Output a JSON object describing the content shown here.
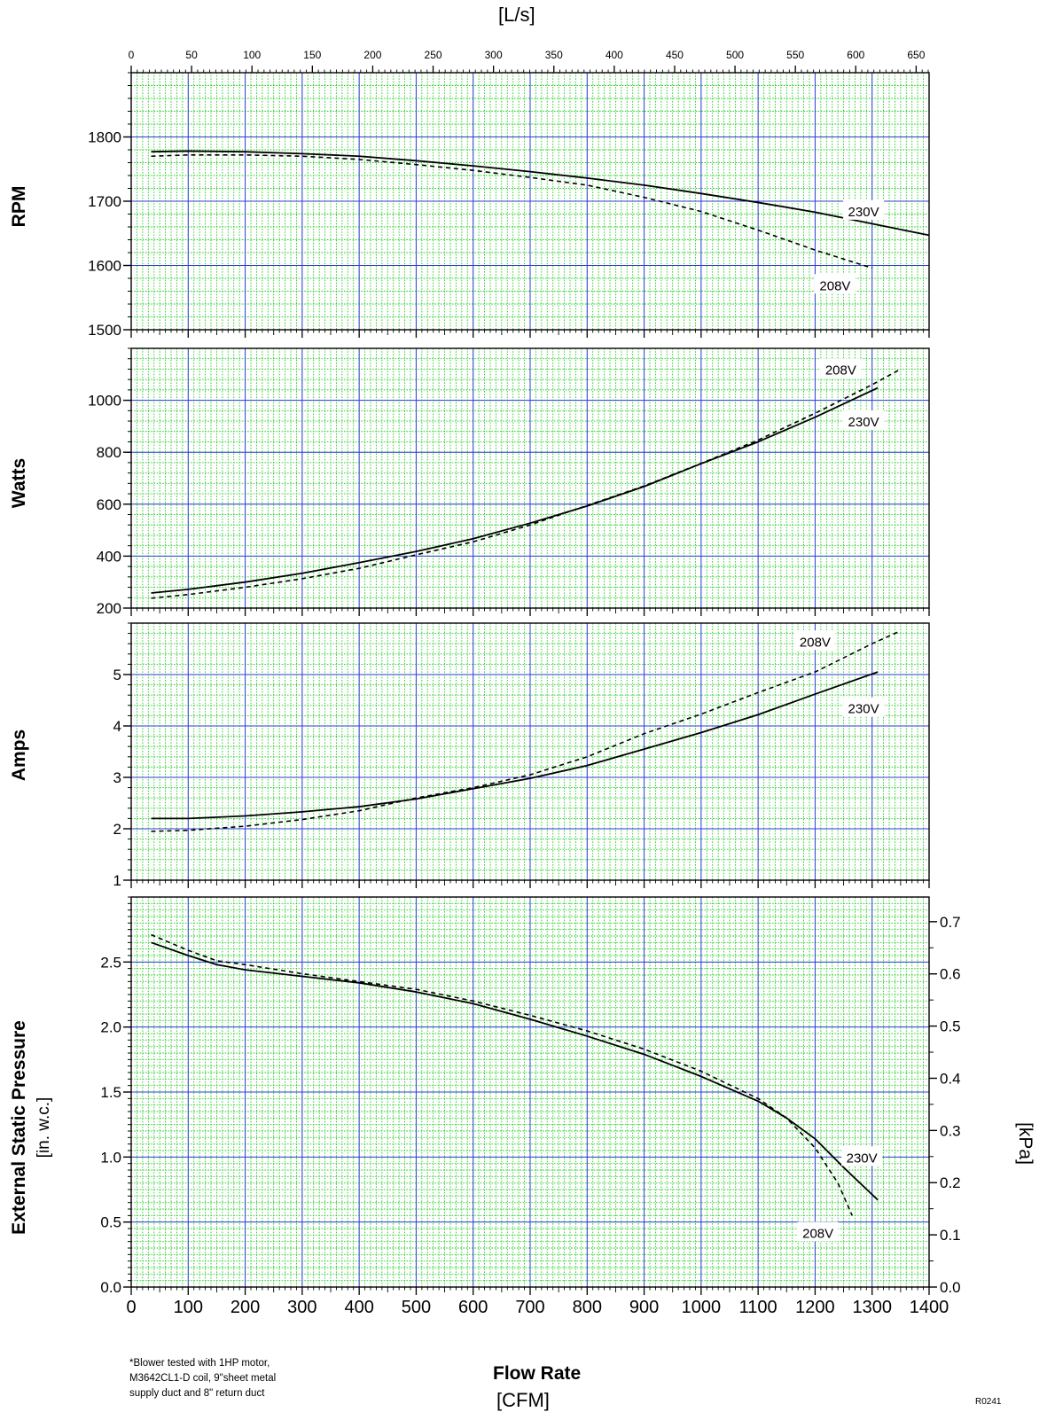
{
  "top_axis_unit": "[L/s]",
  "flow_axis_title": "Flow Rate",
  "flow_axis_unit": "[CFM]",
  "footnote_lines": [
    "*Blower tested with 1HP motor,",
    "M3642CL1-D coil, 9\"sheet metal",
    "supply duct and 8\" return duct"
  ],
  "reference_code": "R0241",
  "colors": {
    "major_grid": "#2f3fd6",
    "minor_grid": "#22cc22",
    "curve": "#000000"
  },
  "chart_data": [
    {
      "type": "line",
      "ylabel": "RPM",
      "ylim": [
        1500,
        1900
      ],
      "yticks": [
        1500,
        1600,
        1700,
        1800
      ],
      "xlim": [
        0,
        1400
      ],
      "xticks_top": [
        0,
        50,
        100,
        150,
        200,
        250,
        300,
        350,
        400,
        450,
        500,
        550,
        600,
        650
      ],
      "xlabel_top": "[L/s]",
      "series": [
        {
          "name": "230V",
          "style": "solid",
          "x": [
            35,
            100,
            200,
            300,
            400,
            500,
            600,
            700,
            800,
            900,
            1000,
            1100,
            1200,
            1300,
            1400
          ],
          "y": [
            1777,
            1778,
            1777,
            1774,
            1770,
            1763,
            1755,
            1746,
            1736,
            1725,
            1712,
            1698,
            1683,
            1665,
            1647
          ]
        },
        {
          "name": "208V",
          "style": "dashed",
          "x": [
            35,
            100,
            200,
            300,
            400,
            500,
            600,
            700,
            800,
            900,
            1000,
            1100,
            1200,
            1300
          ],
          "y": [
            1770,
            1772,
            1772,
            1770,
            1765,
            1757,
            1748,
            1737,
            1725,
            1706,
            1684,
            1655,
            1624,
            1596
          ]
        }
      ],
      "annotations": [
        {
          "text": "230V",
          "x": 1285,
          "y": 1685
        },
        {
          "text": "208V",
          "x": 1235,
          "y": 1570
        }
      ]
    },
    {
      "type": "line",
      "ylabel": "Watts",
      "ylim": [
        200,
        1200
      ],
      "yticks": [
        200,
        400,
        600,
        800,
        1000
      ],
      "xlim": [
        0,
        1400
      ],
      "series": [
        {
          "name": "230V",
          "style": "solid",
          "x": [
            35,
            100,
            200,
            300,
            400,
            500,
            600,
            700,
            800,
            900,
            1000,
            1100,
            1200,
            1310
          ],
          "y": [
            258,
            272,
            300,
            334,
            375,
            418,
            467,
            527,
            593,
            668,
            756,
            840,
            935,
            1048
          ]
        },
        {
          "name": "208V",
          "style": "dashed",
          "x": [
            35,
            100,
            200,
            300,
            400,
            500,
            600,
            700,
            800,
            900,
            1000,
            1100,
            1200,
            1300,
            1350
          ],
          "y": [
            238,
            252,
            280,
            313,
            353,
            405,
            455,
            520,
            595,
            670,
            757,
            847,
            950,
            1060,
            1120
          ]
        }
      ],
      "annotations": [
        {
          "text": "208V",
          "x": 1245,
          "y": 1120
        },
        {
          "text": "230V",
          "x": 1285,
          "y": 920
        }
      ]
    },
    {
      "type": "line",
      "ylabel": "Amps",
      "ylim": [
        1,
        6
      ],
      "yticks": [
        1,
        2,
        3,
        4,
        5
      ],
      "xlim": [
        0,
        1400
      ],
      "series": [
        {
          "name": "230V",
          "style": "solid",
          "x": [
            35,
            100,
            200,
            300,
            400,
            500,
            600,
            700,
            800,
            900,
            1000,
            1100,
            1200,
            1310
          ],
          "y": [
            2.2,
            2.2,
            2.25,
            2.33,
            2.43,
            2.58,
            2.78,
            2.98,
            3.23,
            3.55,
            3.87,
            4.22,
            4.62,
            5.05
          ]
        },
        {
          "name": "208V",
          "style": "dashed",
          "x": [
            35,
            100,
            200,
            300,
            400,
            500,
            600,
            700,
            800,
            900,
            1000,
            1100,
            1200,
            1300,
            1350
          ],
          "y": [
            1.95,
            1.97,
            2.05,
            2.18,
            2.35,
            2.6,
            2.8,
            3.05,
            3.4,
            3.85,
            4.23,
            4.65,
            5.05,
            5.6,
            5.85
          ]
        }
      ],
      "annotations": [
        {
          "text": "208V",
          "x": 1200,
          "y": 5.65
        },
        {
          "text": "230V",
          "x": 1285,
          "y": 4.35
        }
      ]
    },
    {
      "type": "line",
      "ylabel": "External Static Pressure",
      "ylabel_unit": "[in. w.c.]",
      "y2label": "[kPa]",
      "ylim": [
        0,
        3
      ],
      "yticks": [
        0.0,
        0.5,
        1.0,
        1.5,
        2.0,
        2.5
      ],
      "yticks_labels": [
        "0.0",
        "0.5",
        "1.0",
        "1.5",
        "2.0",
        "2.5"
      ],
      "y2ticks": [
        0.0,
        0.1,
        0.2,
        0.3,
        0.4,
        0.5,
        0.6,
        0.7
      ],
      "y2ticks_labels": [
        "0.0",
        "0.1",
        "0.2",
        "0.3",
        "0.4",
        "0.5",
        "0.6",
        "0.7"
      ],
      "xlim": [
        0,
        1400
      ],
      "xticks": [
        0,
        100,
        200,
        300,
        400,
        500,
        600,
        700,
        800,
        900,
        1000,
        1100,
        1200,
        1300,
        1400
      ],
      "xlabel": "Flow Rate",
      "xlabel_unit": "[CFM]",
      "series": [
        {
          "name": "230V",
          "style": "solid",
          "x": [
            35,
            100,
            150,
            200,
            300,
            400,
            500,
            600,
            700,
            800,
            900,
            1000,
            1100,
            1150,
            1200,
            1250,
            1310
          ],
          "y": [
            2.65,
            2.55,
            2.48,
            2.44,
            2.39,
            2.34,
            2.27,
            2.18,
            2.06,
            1.93,
            1.79,
            1.62,
            1.43,
            1.3,
            1.14,
            0.92,
            0.67
          ]
        },
        {
          "name": "208V",
          "style": "dashed",
          "x": [
            35,
            100,
            150,
            200,
            300,
            400,
            500,
            600,
            700,
            800,
            900,
            1000,
            1100,
            1150,
            1200,
            1240,
            1265
          ],
          "y": [
            2.71,
            2.59,
            2.51,
            2.48,
            2.41,
            2.35,
            2.29,
            2.2,
            2.09,
            1.97,
            1.83,
            1.66,
            1.45,
            1.3,
            1.07,
            0.8,
            0.55
          ]
        }
      ],
      "annotations": [
        {
          "text": "230V",
          "x": 1282,
          "y": 1.0
        },
        {
          "text": "208V",
          "x": 1205,
          "y": 0.42
        }
      ]
    }
  ]
}
